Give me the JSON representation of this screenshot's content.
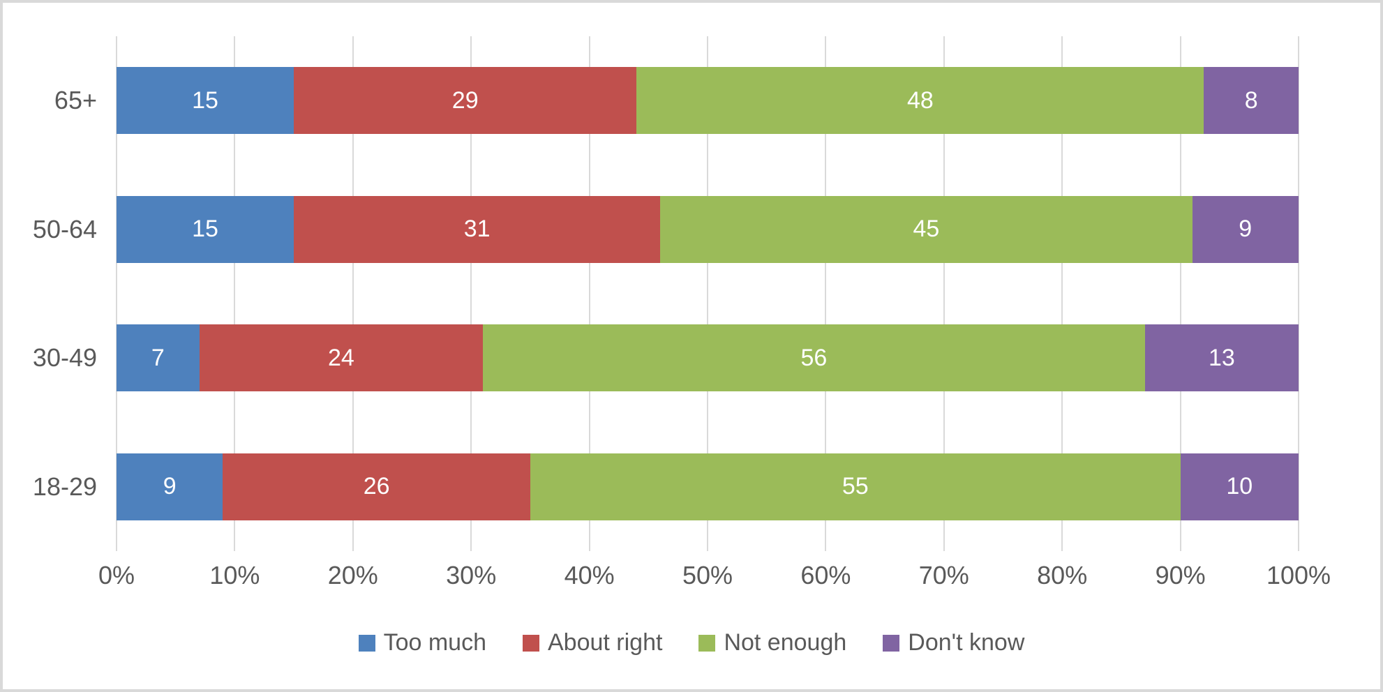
{
  "chart_data": {
    "type": "bar",
    "orientation": "horizontal",
    "stacked": true,
    "title": "",
    "xlabel": "",
    "ylabel": "",
    "xlim": [
      0,
      100
    ],
    "grid": "vertical",
    "legend_position": "bottom",
    "value_labels": "inside-center",
    "categories": [
      "65+",
      "50-64",
      "30-49",
      "18-29"
    ],
    "series": [
      {
        "name": "Too much",
        "color": "#4E81BD",
        "values": [
          15,
          15,
          7,
          9
        ]
      },
      {
        "name": "About right",
        "color": "#C0504D",
        "values": [
          29,
          31,
          24,
          26
        ]
      },
      {
        "name": "Not enough",
        "color": "#9BBB59",
        "values": [
          48,
          45,
          56,
          55
        ]
      },
      {
        "name": "Don't know",
        "color": "#8064A2",
        "values": [
          8,
          9,
          13,
          10
        ]
      }
    ],
    "x_ticks": [
      "0%",
      "10%",
      "20%",
      "30%",
      "40%",
      "50%",
      "60%",
      "70%",
      "80%",
      "90%",
      "100%"
    ],
    "x_tick_step_percent": 10
  },
  "style_colors": {
    "gridline": "#D9D9D9",
    "frame_border": "#D9D9D9",
    "axis_text": "#595959",
    "value_text": "#FFFFFF"
  }
}
